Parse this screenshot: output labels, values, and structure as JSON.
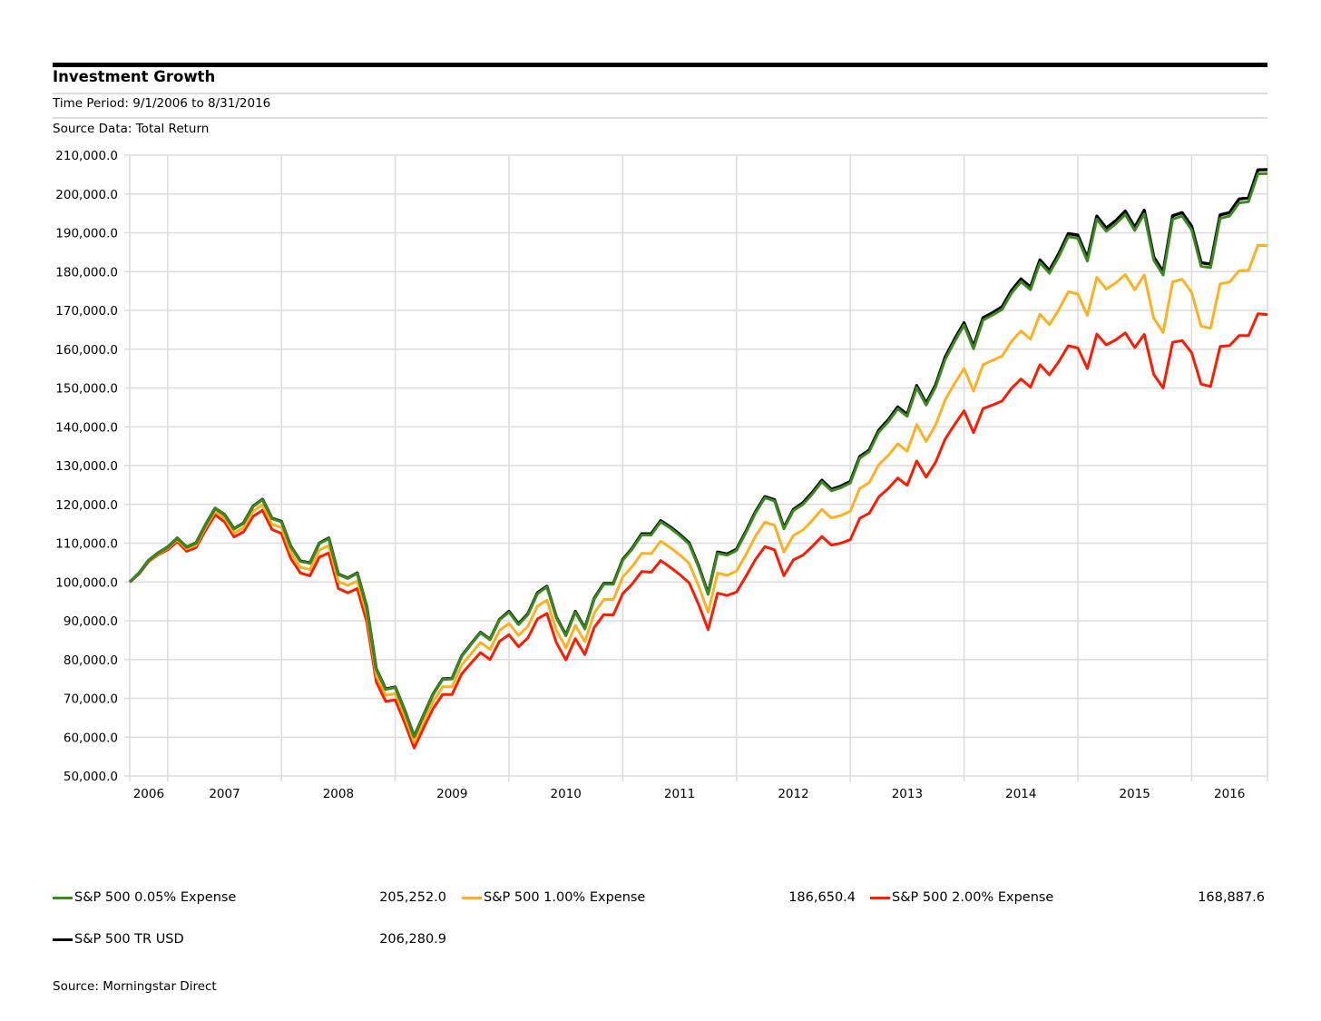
{
  "header": {
    "title": "Investment Growth",
    "time_period": "Time Period: 9/1/2006 to 8/31/2016",
    "source_data": "Source Data: Total Return"
  },
  "footer": {
    "source": "Source: Morningstar Direct"
  },
  "chart_data": {
    "type": "line",
    "title": "Investment Growth",
    "ylim": [
      50000,
      210000
    ],
    "grid": true,
    "legend_position": "bottom",
    "yticks": [
      "50,000.0",
      "60,000.0",
      "70,000.0",
      "80,000.0",
      "90,000.0",
      "100,000.0",
      "110,000.0",
      "120,000.0",
      "130,000.0",
      "140,000.0",
      "150,000.0",
      "160,000.0",
      "170,000.0",
      "180,000.0",
      "190,000.0",
      "200,000.0",
      "210,000.0"
    ],
    "ytick_values": [
      50000,
      60000,
      70000,
      80000,
      90000,
      100000,
      110000,
      120000,
      130000,
      140000,
      150000,
      160000,
      170000,
      180000,
      190000,
      200000,
      210000
    ],
    "xticks": [
      "2006",
      "2007",
      "2008",
      "2009",
      "2010",
      "2011",
      "2012",
      "2013",
      "2014",
      "2015",
      "2016"
    ],
    "x": [
      "2006-08",
      "2006-09",
      "2006-10",
      "2006-11",
      "2006-12",
      "2007-01",
      "2007-02",
      "2007-03",
      "2007-04",
      "2007-05",
      "2007-06",
      "2007-07",
      "2007-08",
      "2007-09",
      "2007-10",
      "2007-11",
      "2007-12",
      "2008-01",
      "2008-02",
      "2008-03",
      "2008-04",
      "2008-05",
      "2008-06",
      "2008-07",
      "2008-08",
      "2008-09",
      "2008-10",
      "2008-11",
      "2008-12",
      "2009-01",
      "2009-02",
      "2009-03",
      "2009-04",
      "2009-05",
      "2009-06",
      "2009-07",
      "2009-08",
      "2009-09",
      "2009-10",
      "2009-11",
      "2009-12",
      "2010-01",
      "2010-02",
      "2010-03",
      "2010-04",
      "2010-05",
      "2010-06",
      "2010-07",
      "2010-08",
      "2010-09",
      "2010-10",
      "2010-11",
      "2010-12",
      "2011-01",
      "2011-02",
      "2011-03",
      "2011-04",
      "2011-05",
      "2011-06",
      "2011-07",
      "2011-08",
      "2011-09",
      "2011-10",
      "2011-11",
      "2011-12",
      "2012-01",
      "2012-02",
      "2012-03",
      "2012-04",
      "2012-05",
      "2012-06",
      "2012-07",
      "2012-08",
      "2012-09",
      "2012-10",
      "2012-11",
      "2012-12",
      "2013-01",
      "2013-02",
      "2013-03",
      "2013-04",
      "2013-05",
      "2013-06",
      "2013-07",
      "2013-08",
      "2013-09",
      "2013-10",
      "2013-11",
      "2013-12",
      "2014-01",
      "2014-02",
      "2014-03",
      "2014-04",
      "2014-05",
      "2014-06",
      "2014-07",
      "2014-08",
      "2014-09",
      "2014-10",
      "2014-11",
      "2014-12",
      "2015-01",
      "2015-02",
      "2015-03",
      "2015-04",
      "2015-05",
      "2015-06",
      "2015-07",
      "2015-08",
      "2015-09",
      "2015-10",
      "2015-11",
      "2015-12",
      "2016-01",
      "2016-02",
      "2016-03",
      "2016-04",
      "2016-05",
      "2016-06",
      "2016-07",
      "2016-08"
    ],
    "series": [
      {
        "name": "S&P 500 2.00% Expense",
        "color": "#ff1a00",
        "end_value": "168,887.6",
        "values": [
          100000,
          102100,
          105300,
          107000,
          108300,
          110400,
          107900,
          108900,
          113300,
          117300,
          115500,
          111600,
          112900,
          116900,
          118500,
          113500,
          112500,
          106000,
          102300,
          101600,
          106400,
          107500,
          98300,
          97200,
          98300,
          89700,
          74300,
          69200,
          69600,
          63700,
          57200,
          62400,
          67400,
          71000,
          71000,
          76300,
          79100,
          81800,
          80000,
          84700,
          86400,
          83300,
          85600,
          90500,
          91900,
          84300,
          79900,
          85400,
          81300,
          88300,
          91600,
          91500,
          97000,
          99500,
          102700,
          102500,
          105500,
          103800,
          101900,
          99800,
          94200,
          87700,
          97100,
          96500,
          97400,
          101500,
          105800,
          109100,
          108300,
          101600,
          105700,
          106900,
          109200,
          111700,
          109500,
          110000,
          110900,
          116400,
          117700,
          121900,
          124100,
          126800,
          124900,
          131200,
          127000,
          130900,
          136800,
          140600,
          144100,
          138500,
          144700,
          145600,
          146600,
          149900,
          152300,
          150200,
          156000,
          153400,
          156800,
          160900,
          160300,
          155000,
          163900,
          161100,
          162400,
          164200,
          160400,
          163800,
          153500,
          150000,
          161800,
          162200,
          159100,
          151000,
          150400,
          160700,
          160900,
          163500,
          163500,
          169100,
          168887.6
        ]
      },
      {
        "name": "S&P 500 1.00% Expense",
        "color": "#ffb020",
        "end_value": "186,650.4",
        "values": [
          100000,
          102200,
          105400,
          107200,
          108700,
          110900,
          108500,
          109500,
          114100,
          118200,
          116500,
          112600,
          114000,
          118200,
          119900,
          114900,
          114000,
          107500,
          103800,
          103200,
          108200,
          109400,
          100100,
          99100,
          100300,
          91600,
          75900,
          70800,
          71200,
          65300,
          58700,
          64000,
          69200,
          73000,
          73000,
          78600,
          81500,
          84400,
          82600,
          87500,
          89300,
          86200,
          88600,
          93800,
          95300,
          87500,
          83000,
          88800,
          84600,
          92000,
          95500,
          95500,
          101300,
          104000,
          107400,
          107300,
          110500,
          108900,
          107000,
          104800,
          99000,
          92200,
          102300,
          101700,
          102800,
          107100,
          111800,
          115400,
          114600,
          107700,
          112000,
          113400,
          115900,
          118700,
          116500,
          117100,
          118200,
          124100,
          125600,
          130200,
          132600,
          135600,
          133700,
          140600,
          136200,
          140500,
          146900,
          151200,
          155000,
          149200,
          156000,
          157100,
          158200,
          162000,
          164700,
          162600,
          169000,
          166300,
          170200,
          174800,
          174200,
          168700,
          178500,
          175500,
          177100,
          179200,
          175300,
          179100,
          168000,
          164300,
          177400,
          178000,
          174600,
          165900,
          165400,
          176800,
          177300,
          180200,
          180300,
          186800,
          186650.4
        ]
      },
      {
        "name": "S&P 500 TR USD",
        "color": "#000000",
        "end_value": "206,280.9",
        "values": [
          100000,
          102300,
          105600,
          107500,
          109000,
          111300,
          109000,
          110100,
          114800,
          119000,
          117400,
          113700,
          115200,
          119500,
          121300,
          116400,
          115600,
          109100,
          105400,
          104900,
          110000,
          111300,
          102000,
          101000,
          102300,
          93500,
          77600,
          72400,
          72900,
          66900,
          60200,
          65700,
          71100,
          75000,
          75100,
          80900,
          84000,
          87000,
          85200,
          90300,
          92400,
          89200,
          91800,
          97200,
          98900,
          90900,
          86300,
          92400,
          88100,
          95800,
          99600,
          99600,
          105800,
          108700,
          112400,
          112400,
          115800,
          114200,
          112300,
          110100,
          104100,
          97000,
          107700,
          107200,
          108400,
          113100,
          118100,
          122000,
          121200,
          114000,
          118700,
          120400,
          123100,
          126200,
          123900,
          124700,
          125900,
          132300,
          134000,
          139100,
          141800,
          145100,
          143200,
          150600,
          146100,
          150800,
          157900,
          162600,
          166800,
          160700,
          168100,
          169400,
          170900,
          175100,
          178100,
          176000,
          183000,
          180300,
          184700,
          189800,
          189400,
          183500,
          194300,
          191200,
          193100,
          195600,
          191400,
          195800,
          183800,
          179900,
          194400,
          195200,
          191700,
          182300,
          181900,
          194600,
          195200,
          198700,
          199000,
          206200,
          206280.9
        ]
      },
      {
        "name": "S&P 500 0.05% Expense",
        "color": "#3a8a1e",
        "end_value": "205,252.0",
        "values": [
          100000,
          102300,
          105600,
          107500,
          109000,
          111300,
          109000,
          110100,
          114800,
          119000,
          117400,
          113600,
          115100,
          119400,
          121200,
          116300,
          115500,
          109000,
          105300,
          104800,
          109900,
          111200,
          101900,
          100900,
          102200,
          93400,
          77500,
          72300,
          72800,
          66800,
          60100,
          65600,
          71000,
          74900,
          75000,
          80800,
          83900,
          86900,
          85100,
          90200,
          92200,
          89000,
          91600,
          97000,
          98700,
          90700,
          86100,
          92200,
          87900,
          95600,
          99400,
          99400,
          105600,
          108500,
          112100,
          112100,
          115500,
          113900,
          112000,
          109800,
          103800,
          96800,
          107400,
          106900,
          108100,
          112800,
          117800,
          121700,
          120900,
          113700,
          118400,
          120000,
          122700,
          125800,
          123500,
          124300,
          125500,
          131900,
          133600,
          138600,
          141300,
          144600,
          142700,
          150100,
          145600,
          150300,
          157300,
          162000,
          166200,
          160100,
          167500,
          168800,
          170200,
          174400,
          177400,
          175300,
          182300,
          179600,
          183900,
          189000,
          188600,
          182700,
          193500,
          190400,
          192300,
          194700,
          190600,
          194900,
          183000,
          179100,
          193500,
          194300,
          190800,
          181400,
          181000,
          193700,
          194300,
          197700,
          198000,
          205200,
          205252.0
        ]
      }
    ]
  },
  "legend": [
    {
      "label": "S&P 500 0.05% Expense",
      "value": "205,252.0",
      "color": "#3a8a1e"
    },
    {
      "label": "S&P 500 1.00% Expense",
      "value": "186,650.4",
      "color": "#ffb020"
    },
    {
      "label": "S&P 500 2.00% Expense",
      "value": "168,887.6",
      "color": "#ff1a00"
    },
    {
      "label": "S&P 500 TR USD",
      "value": "206,280.9",
      "color": "#000000"
    }
  ]
}
